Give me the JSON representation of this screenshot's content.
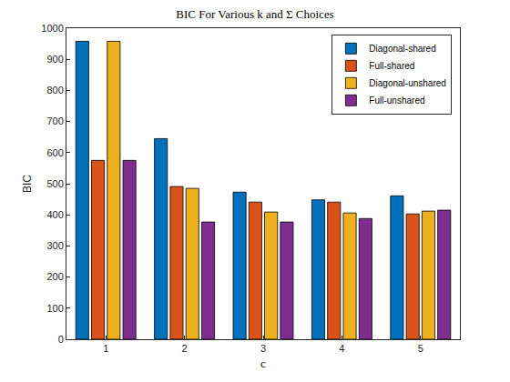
{
  "chart_data": {
    "type": "bar",
    "title": "BIC For Various k and Σ Choices",
    "x_label": "c",
    "y_label": "BIC",
    "categories": [
      "1",
      "2",
      "3",
      "4",
      "5"
    ],
    "series": [
      {
        "name": "Diagonal-shared",
        "color": "#0072BD",
        "values": [
          958,
          645,
          473,
          448,
          461
        ]
      },
      {
        "name": "Full-shared",
        "color": "#D95319",
        "values": [
          575,
          491,
          441,
          441,
          403
        ]
      },
      {
        "name": "Diagonal-unshared",
        "color": "#EDB120",
        "values": [
          958,
          485,
          409,
          406,
          412
        ]
      },
      {
        "name": "Full-unshared",
        "color": "#7E2F8E",
        "values": [
          575,
          377,
          377,
          388,
          415
        ]
      }
    ],
    "ylim": [
      0,
      1000
    ],
    "yticks": [
      0,
      100,
      200,
      300,
      400,
      500,
      600,
      700,
      800,
      900,
      1000
    ],
    "grid": false,
    "legend": "top-right"
  }
}
